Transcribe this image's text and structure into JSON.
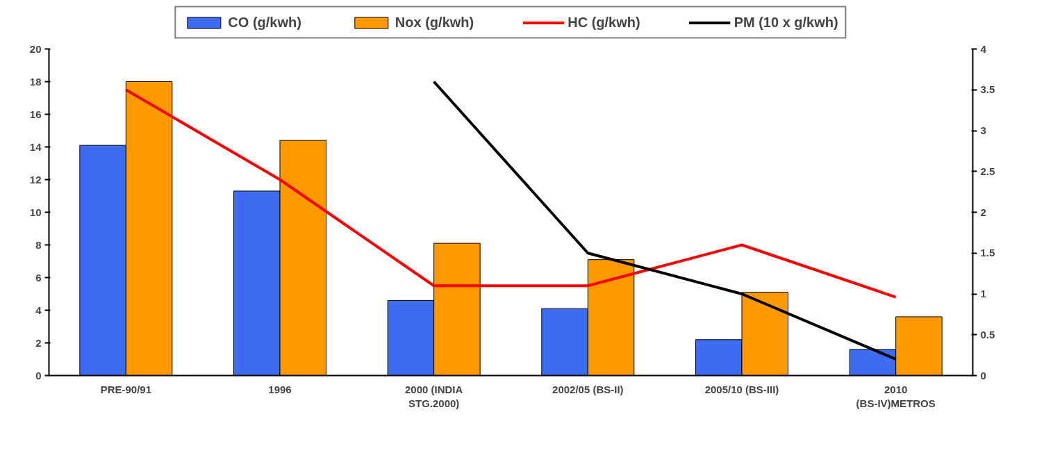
{
  "chart_data": {
    "type": "bar",
    "categories": [
      "PRE-90/91",
      "1996",
      "2000 (INDIA STG.2000)",
      "2002/05 (BS-II)",
      "2005/10 (BS-III)",
      "2010 (BS-IV)METROS"
    ],
    "series": [
      {
        "name": "CO (g/kwh)",
        "color": "#3d6cf0",
        "values": [
          14.1,
          11.3,
          4.6,
          4.1,
          2.2,
          1.6
        ]
      },
      {
        "name": "Nox (g/kwh)",
        "color": "#ff9900",
        "values": [
          18.0,
          14.4,
          8.1,
          7.1,
          5.1,
          3.6
        ]
      },
      {
        "name": "HC (g/kwh)",
        "type": "line",
        "axis": "y2",
        "color": "#ff0000",
        "values": [
          3.5,
          2.4,
          1.1,
          1.1,
          1.6,
          0.96
        ]
      },
      {
        "name": "PM (10 x g/kwh)",
        "type": "line",
        "axis": "y2",
        "color": "#000000",
        "values": [
          null,
          null,
          3.6,
          1.5,
          1.0,
          0.2
        ]
      }
    ],
    "ylim": [
      0,
      20
    ],
    "yticks": [
      0,
      2,
      4,
      6,
      8,
      10,
      12,
      14,
      16,
      18,
      20
    ],
    "y2lim": [
      0,
      4
    ],
    "y2ticks": [
      0,
      0.5,
      1,
      1.5,
      2,
      2.5,
      3,
      3.5,
      4
    ],
    "grid": false,
    "legend": "top",
    "marker": "none",
    "line_style": "solid"
  }
}
